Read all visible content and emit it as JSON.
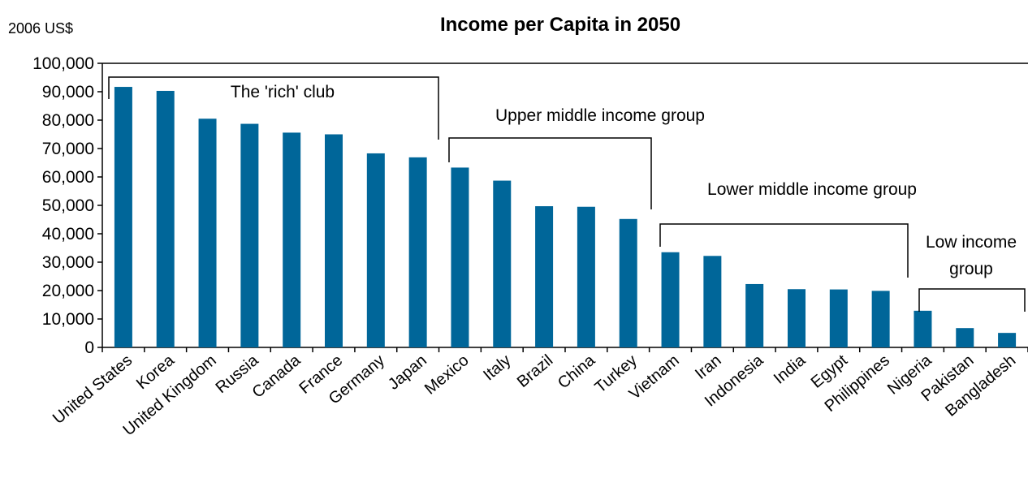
{
  "chart_data": {
    "type": "bar",
    "title": "Income per Capita in 2050",
    "unit_label": "2006 US$",
    "ylim": [
      0,
      100000
    ],
    "yticks": [
      "0",
      "10,000",
      "20,000",
      "30,000",
      "40,000",
      "50,000",
      "60,000",
      "70,000",
      "80,000",
      "90,000",
      "100,000"
    ],
    "bar_color": "#006699",
    "categories": [
      "United States",
      "Korea",
      "United Kingdom",
      "Russia",
      "Canada",
      "France",
      "Germany",
      "Japan",
      "Mexico",
      "Italy",
      "Brazil",
      "China",
      "Turkey",
      "Vietnam",
      "Iran",
      "Indonesia",
      "India",
      "Egypt",
      "Philippines",
      "Nigeria",
      "Pakistan",
      "Bangladesh"
    ],
    "values": [
      91700,
      90300,
      80500,
      78700,
      75600,
      75000,
      68300,
      66900,
      63300,
      58700,
      49700,
      49500,
      45200,
      33500,
      32200,
      22300,
      20500,
      20400,
      19900,
      12900,
      6800,
      5100
    ],
    "groups": [
      {
        "label": "The 'rich' club",
        "from": 0,
        "to": 7
      },
      {
        "label": "Upper middle income group",
        "from": 8,
        "to": 12
      },
      {
        "label": "Lower middle income group",
        "from": 13,
        "to": 18
      },
      {
        "label_lines": [
          "Low income",
          "group"
        ],
        "from": 19,
        "to": 21
      }
    ]
  }
}
